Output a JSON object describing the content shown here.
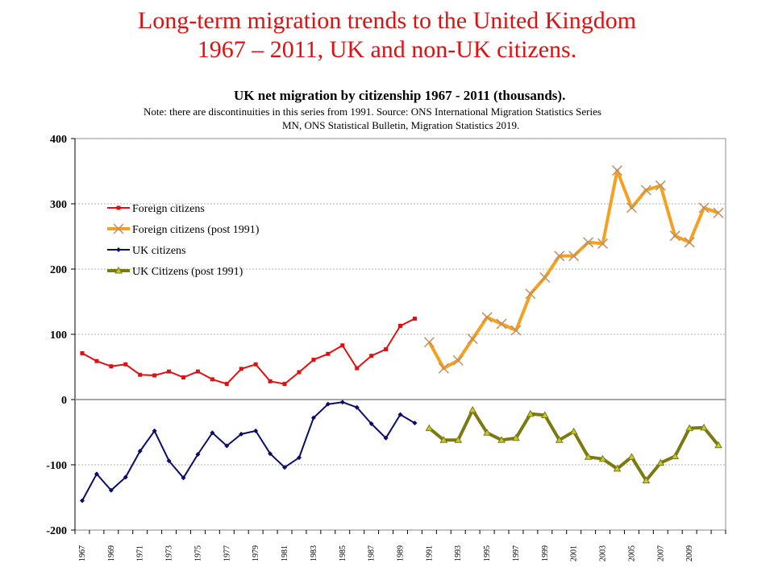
{
  "slide": {
    "title_line1": "Long-term migration trends to the United Kingdom",
    "title_line2": "1967 – 2011, UK and non-UK citizens."
  },
  "colors": {
    "title": "#dd1111",
    "foreign": "#dd1111",
    "foreign_post": "#f5a020",
    "foreign_post_marker": "#c09060",
    "uk": "#0c0c6a",
    "uk_post": "#7a7a10",
    "uk_post_marker": "#c8c830"
  },
  "chart_data": {
    "type": "line",
    "title": "UK net migration by citizenship 1967 - 2011  (thousands).",
    "note_line1": "Note: there are discontinuities in this series from 1991. Source: ONS International Migration Statistics Series",
    "note_line2": "MN, ONS Statistical Bulletin, Migration Statistics 2019.",
    "ylim": [
      -200,
      400
    ],
    "yticks": [
      -200,
      -100,
      0,
      100,
      200,
      300,
      400
    ],
    "ytick_labels": [
      "-200",
      "-100",
      "0",
      "100",
      "200",
      "300",
      "400"
    ],
    "x_start": 1967,
    "x_end": 2011,
    "x_tick_labels": [
      "1967",
      "1969",
      "1971",
      "1973",
      "1975",
      "1977",
      "1979",
      "1981",
      "1983",
      "1985",
      "1987",
      "1989",
      "1991",
      "1993",
      "1995",
      "1997",
      "1999",
      "2001",
      "2003",
      "2005",
      "2007",
      "2009"
    ],
    "grid": true,
    "legend_position": "left",
    "series": [
      {
        "name": "Foreign citizens",
        "color": "#dd1111",
        "marker": "square",
        "x": [
          1967,
          1968,
          1969,
          1970,
          1971,
          1972,
          1973,
          1974,
          1975,
          1976,
          1977,
          1978,
          1979,
          1980,
          1981,
          1982,
          1983,
          1984,
          1985,
          1986,
          1987,
          1988,
          1989,
          1990
        ],
        "y": [
          71,
          59,
          51,
          54,
          38,
          37,
          43,
          34,
          43,
          31,
          24,
          47,
          54,
          28,
          24,
          42,
          61,
          70,
          83,
          48,
          67,
          77,
          113,
          124
        ]
      },
      {
        "name": "Foreign citizens (post 1991)",
        "color": "#f5a020",
        "marker": "x",
        "x": [
          1991,
          1992,
          1993,
          1994,
          1995,
          1996,
          1997,
          1998,
          1999,
          2000,
          2001,
          2002,
          2003,
          2004,
          2005,
          2006,
          2007,
          2008,
          2009,
          2010,
          2011
        ],
        "y": [
          88,
          48,
          60,
          93,
          126,
          116,
          106,
          162,
          187,
          220,
          220,
          241,
          239,
          351,
          294,
          321,
          328,
          251,
          241,
          294,
          286
        ]
      },
      {
        "name": "UK citizens",
        "color": "#0c0c6a",
        "marker": "diamond",
        "x": [
          1967,
          1968,
          1969,
          1970,
          1971,
          1972,
          1973,
          1974,
          1975,
          1976,
          1977,
          1978,
          1979,
          1980,
          1981,
          1982,
          1983,
          1984,
          1985,
          1986,
          1987,
          1988,
          1989,
          1990
        ],
        "y": [
          -155,
          -114,
          -139,
          -119,
          -79,
          -48,
          -94,
          -120,
          -84,
          -51,
          -71,
          -53,
          -48,
          -83,
          -104,
          -89,
          -28,
          -7,
          -4,
          -12,
          -37,
          -59,
          -23,
          -36
        ]
      },
      {
        "name": "UK Citizens (post 1991)",
        "color": "#7a7a10",
        "marker": "triangle",
        "x": [
          1991,
          1992,
          1993,
          1994,
          1995,
          1996,
          1997,
          1998,
          1999,
          2000,
          2001,
          2002,
          2003,
          2004,
          2005,
          2006,
          2007,
          2008,
          2009,
          2010,
          2011
        ],
        "y": [
          -44,
          -62,
          -62,
          -16,
          -51,
          -62,
          -59,
          -22,
          -24,
          -62,
          -49,
          -88,
          -91,
          -106,
          -88,
          -124,
          -97,
          -87,
          -44,
          -43,
          -70
        ]
      }
    ]
  }
}
